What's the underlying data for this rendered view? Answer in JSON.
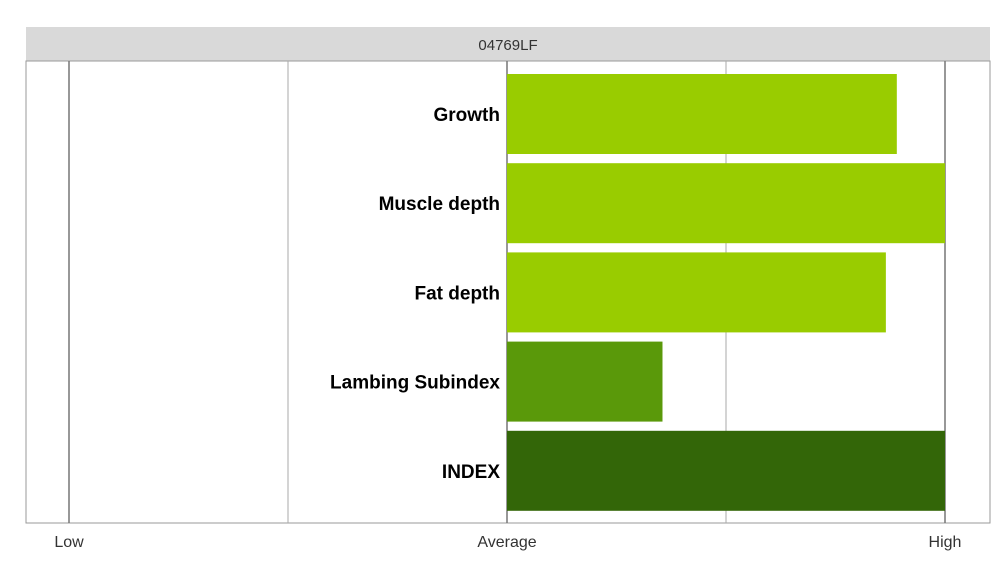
{
  "chart_data": {
    "type": "bar",
    "orientation": "horizontal",
    "title": "04769LF",
    "categories": [
      "Growth",
      "Muscle depth",
      "Fat depth",
      "Lambing Subindex",
      "INDEX"
    ],
    "values": [
      0.89,
      1.0,
      0.865,
      0.355,
      1.0
    ],
    "value_scale": "fraction from Average (0) to High (1)",
    "colors": [
      "#99cc00",
      "#99cc00",
      "#99cc00",
      "#5a990a",
      "#336608"
    ],
    "x_ticks": [
      "Low",
      "Average",
      "High"
    ],
    "xlim": [
      -1,
      1
    ],
    "grid": true,
    "legend": "none"
  }
}
